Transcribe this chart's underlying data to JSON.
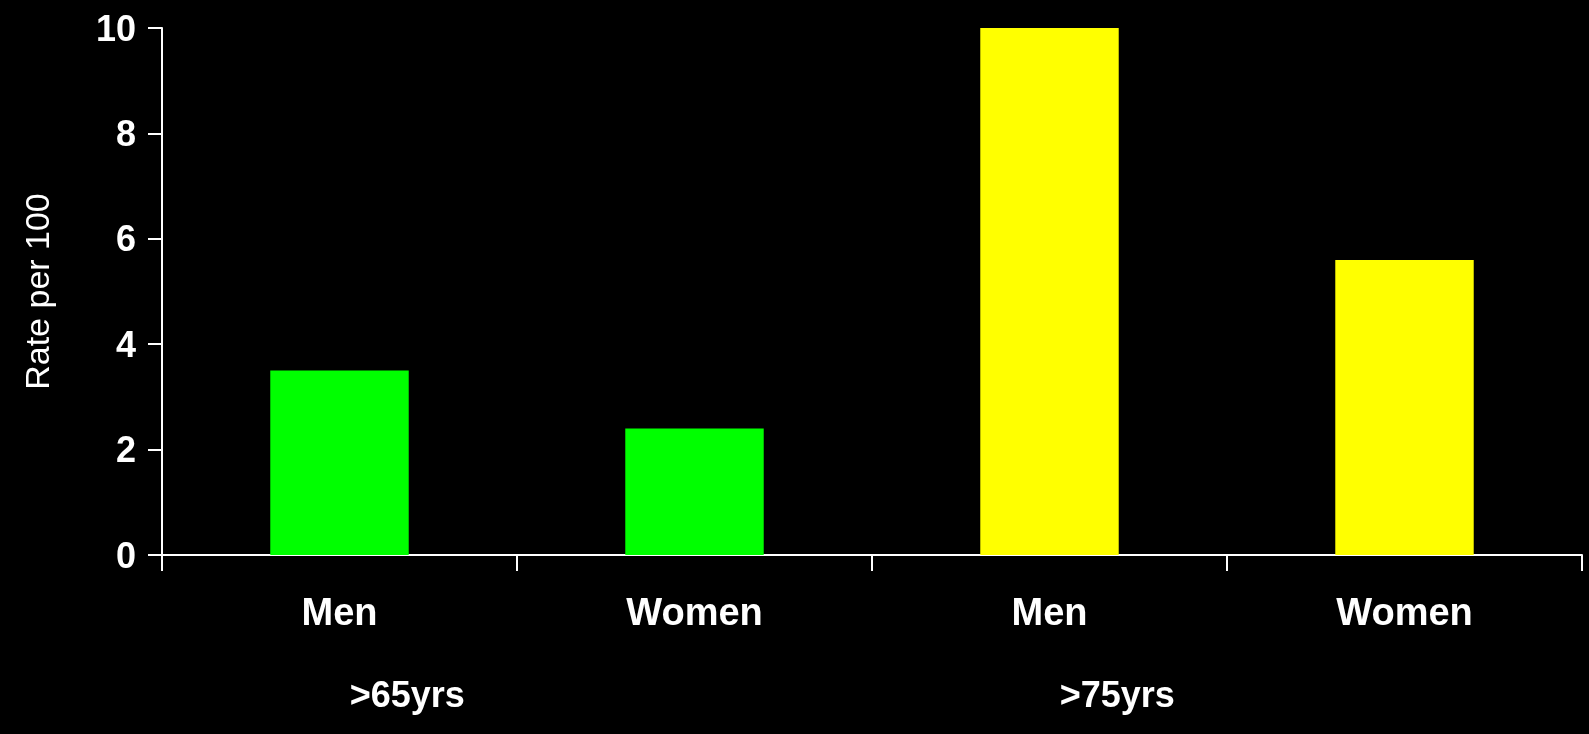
{
  "chart_data": {
    "type": "bar",
    "ylabel": "Rate per 100",
    "categories": [
      "Men",
      "Women",
      "Men",
      "Women"
    ],
    "values": [
      3.5,
      2.4,
      10,
      5.6
    ],
    "colors": [
      "#00ff00",
      "#00ff00",
      "#ffff00",
      "#ffff00"
    ],
    "ylim": [
      0,
      10
    ],
    "yticks": [
      0,
      2,
      4,
      6,
      8,
      10
    ],
    "grid": false,
    "annotations": [
      ">65yrs",
      ">75yrs"
    ]
  }
}
